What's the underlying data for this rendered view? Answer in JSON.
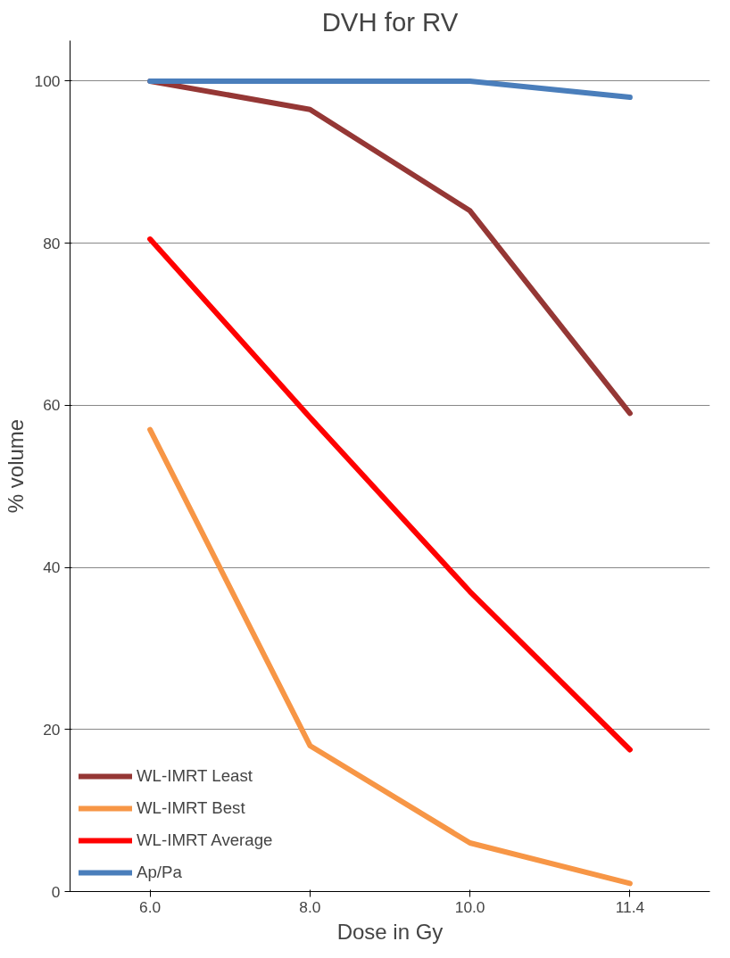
{
  "chart_data": {
    "type": "line",
    "title": "DVH for RV",
    "xlabel": "Dose in Gy",
    "ylabel": "% volume",
    "categories": [
      "6.0",
      "8.0",
      "10.0",
      "11.4"
    ],
    "series": [
      {
        "name": "WL-IMRT Least",
        "color": "#953735",
        "values": [
          100,
          96.5,
          84,
          59
        ]
      },
      {
        "name": "WL-IMRT Best",
        "color": "#f79646",
        "values": [
          57,
          18,
          6,
          1
        ]
      },
      {
        "name": "WL-IMRT Average",
        "color": "#ff0000",
        "values": [
          80.5,
          58.5,
          37,
          17.5
        ]
      },
      {
        "name": "Ap/Pa",
        "color": "#4a7ebb",
        "values": [
          100,
          100,
          100,
          98
        ]
      }
    ],
    "ylim": [
      0,
      105
    ],
    "yticks": [
      0,
      20,
      40,
      60,
      80,
      100
    ],
    "grid": "y",
    "legend": "bottom left",
    "marker": "none",
    "line_style": "solid"
  }
}
